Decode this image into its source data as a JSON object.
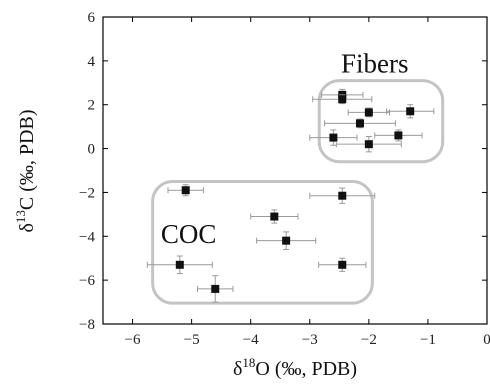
{
  "chart_data": {
    "type": "scatter",
    "title": "",
    "xlabel": {
      "prefix": "δ",
      "sup": "18",
      "main": "O (‰, PDB)"
    },
    "ylabel": {
      "prefix": "δ",
      "sup": "13",
      "main": "C (‰, PDB)"
    },
    "xlim": [
      -6.5,
      0
    ],
    "ylim": [
      -8,
      6
    ],
    "xticks": [
      -6,
      -5,
      -4,
      -3,
      -2,
      -1,
      0
    ],
    "yticks": [
      -8,
      -6,
      -4,
      -2,
      0,
      2,
      4,
      6
    ],
    "grid": false,
    "marker": "square",
    "marker_color": "#111111",
    "errorbar_color": "#9a9a9a",
    "group_box_color": "#c4c4c4",
    "groups": [
      {
        "label": "Fibers",
        "box": {
          "x": [
            -2.84,
            -0.75
          ],
          "y": [
            -0.6,
            3.1
          ]
        },
        "points": [
          {
            "x": -2.45,
            "y": 2.45,
            "xerr": 0.35,
            "yerr": 0.25
          },
          {
            "x": -2.45,
            "y": 2.25,
            "xerr": 0.5,
            "yerr": 0.2
          },
          {
            "x": -2.0,
            "y": 1.65,
            "xerr": 0.35,
            "yerr": 0.2
          },
          {
            "x": -2.15,
            "y": 1.15,
            "xerr": 0.6,
            "yerr": 0.2
          },
          {
            "x": -1.3,
            "y": 1.7,
            "xerr": 0.4,
            "yerr": 0.3
          },
          {
            "x": -1.5,
            "y": 0.6,
            "xerr": 0.4,
            "yerr": 0.25
          },
          {
            "x": -2.6,
            "y": 0.5,
            "xerr": 0.4,
            "yerr": 0.35
          },
          {
            "x": -2.0,
            "y": 0.2,
            "xerr": 0.55,
            "yerr": 0.35
          }
        ]
      },
      {
        "label": "COC",
        "box": {
          "x": [
            -5.66,
            -1.94
          ],
          "y": [
            -7.05,
            -1.5
          ]
        },
        "points": [
          {
            "x": -5.1,
            "y": -1.9,
            "xerr": 0.3,
            "yerr": 0.25
          },
          {
            "x": -2.45,
            "y": -2.15,
            "xerr": 0.55,
            "yerr": 0.35
          },
          {
            "x": -3.6,
            "y": -3.1,
            "xerr": 0.4,
            "yerr": 0.3
          },
          {
            "x": -3.4,
            "y": -4.2,
            "xerr": 0.5,
            "yerr": 0.4
          },
          {
            "x": -5.2,
            "y": -5.3,
            "xerr": 0.55,
            "yerr": 0.4
          },
          {
            "x": -2.45,
            "y": -5.3,
            "xerr": 0.4,
            "yerr": 0.3
          },
          {
            "x": -4.6,
            "y": -6.4,
            "xerr": 0.3,
            "yerr": 0.6
          }
        ]
      }
    ]
  }
}
